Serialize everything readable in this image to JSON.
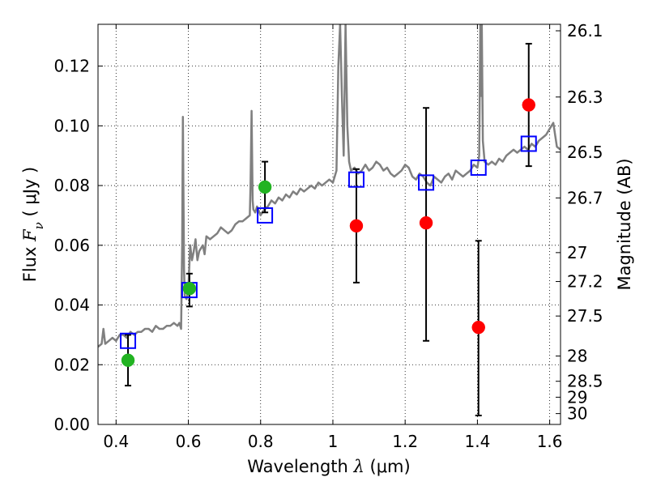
{
  "chart_data": {
    "type": "scatter",
    "title": "",
    "xlabel": "Wavelength  λ (μm)",
    "ylabel": "Flux  Fν  ( μJy )",
    "ylabel_parts": {
      "prefix": "Flux  ",
      "symbol": "F",
      "subscript": "ν",
      "suffix": "  ( μJy )"
    },
    "xlabel_parts": {
      "prefix": "Wavelength  ",
      "symbol": "λ",
      "suffix": " (μm)"
    },
    "y2label": "Magnitude (AB)",
    "xlim": [
      0.35,
      1.63
    ],
    "ylim": [
      0.0,
      0.134
    ],
    "grid": true,
    "legend": "none",
    "x_ticks": [
      {
        "value": 0.4,
        "label": "0.4"
      },
      {
        "value": 0.6,
        "label": "0.6"
      },
      {
        "value": 0.8,
        "label": "0.8"
      },
      {
        "value": 1.0,
        "label": "1"
      },
      {
        "value": 1.2,
        "label": "1.2"
      },
      {
        "value": 1.4,
        "label": "1.4"
      },
      {
        "value": 1.6,
        "label": "1.6"
      }
    ],
    "y_ticks": [
      {
        "value": 0.0,
        "label": "0.00"
      },
      {
        "value": 0.02,
        "label": "0.02"
      },
      {
        "value": 0.04,
        "label": "0.04"
      },
      {
        "value": 0.06,
        "label": "0.06"
      },
      {
        "value": 0.08,
        "label": "0.08"
      },
      {
        "value": 0.1,
        "label": "0.10"
      },
      {
        "value": 0.12,
        "label": "0.12"
      }
    ],
    "y2_ticks": [
      {
        "label": "26.1",
        "value": 26.1
      },
      {
        "label": "26.3",
        "value": 26.3
      },
      {
        "label": "26.5",
        "value": 26.5
      },
      {
        "label": "26.7",
        "value": 26.7
      },
      {
        "label": "27",
        "value": 27.0
      },
      {
        "label": "27.2",
        "value": 27.2
      },
      {
        "label": "27.5",
        "value": 27.5
      },
      {
        "label": "28",
        "value": 28.0
      },
      {
        "label": "28.5",
        "value": 28.5
      },
      {
        "label": "29",
        "value": 29.0
      },
      {
        "label": "30",
        "value": 30.0
      }
    ],
    "series": [
      {
        "kind": "line",
        "color": "#808080",
        "x": [
          0.35,
          0.36,
          0.365,
          0.37,
          0.38,
          0.39,
          0.4,
          0.41,
          0.42,
          0.43,
          0.44,
          0.45,
          0.46,
          0.47,
          0.48,
          0.49,
          0.5,
          0.51,
          0.52,
          0.53,
          0.54,
          0.55,
          0.56,
          0.57,
          0.575,
          0.58,
          0.583,
          0.585,
          0.588,
          0.59,
          0.595,
          0.6,
          0.605,
          0.61,
          0.615,
          0.62,
          0.625,
          0.63,
          0.64,
          0.645,
          0.65,
          0.66,
          0.67,
          0.68,
          0.69,
          0.7,
          0.71,
          0.72,
          0.73,
          0.74,
          0.75,
          0.76,
          0.77,
          0.772,
          0.775,
          0.778,
          0.78,
          0.785,
          0.79,
          0.8,
          0.81,
          0.82,
          0.83,
          0.84,
          0.85,
          0.86,
          0.87,
          0.88,
          0.89,
          0.9,
          0.91,
          0.92,
          0.93,
          0.94,
          0.95,
          0.96,
          0.97,
          0.98,
          0.99,
          1.0,
          1.005,
          1.01,
          1.015,
          1.02,
          1.025,
          1.03,
          1.035,
          1.04,
          1.045,
          1.05,
          1.06,
          1.07,
          1.08,
          1.09,
          1.1,
          1.11,
          1.12,
          1.13,
          1.14,
          1.15,
          1.16,
          1.17,
          1.18,
          1.19,
          1.2,
          1.21,
          1.22,
          1.23,
          1.24,
          1.25,
          1.26,
          1.27,
          1.28,
          1.29,
          1.3,
          1.31,
          1.32,
          1.33,
          1.34,
          1.35,
          1.36,
          1.37,
          1.38,
          1.39,
          1.4,
          1.405,
          1.408,
          1.41,
          1.412,
          1.415,
          1.42,
          1.43,
          1.44,
          1.45,
          1.46,
          1.47,
          1.48,
          1.49,
          1.5,
          1.51,
          1.52,
          1.53,
          1.54,
          1.55,
          1.56,
          1.57,
          1.58,
          1.59,
          1.6,
          1.61,
          1.62,
          1.63
        ],
        "y": [
          0.026,
          0.027,
          0.032,
          0.027,
          0.028,
          0.029,
          0.028,
          0.03,
          0.03,
          0.029,
          0.031,
          0.03,
          0.031,
          0.031,
          0.032,
          0.032,
          0.031,
          0.033,
          0.032,
          0.032,
          0.033,
          0.033,
          0.034,
          0.033,
          0.034,
          0.032,
          0.06,
          0.103,
          0.052,
          0.043,
          0.042,
          0.045,
          0.06,
          0.055,
          0.058,
          0.062,
          0.055,
          0.058,
          0.06,
          0.057,
          0.063,
          0.062,
          0.063,
          0.064,
          0.066,
          0.065,
          0.064,
          0.065,
          0.067,
          0.068,
          0.068,
          0.069,
          0.07,
          0.08,
          0.105,
          0.075,
          0.072,
          0.071,
          0.073,
          0.07,
          0.072,
          0.073,
          0.075,
          0.074,
          0.076,
          0.075,
          0.077,
          0.076,
          0.078,
          0.077,
          0.079,
          0.078,
          0.079,
          0.08,
          0.079,
          0.081,
          0.08,
          0.081,
          0.082,
          0.081,
          0.083,
          0.085,
          0.12,
          0.134,
          0.11,
          0.09,
          0.134,
          0.1,
          0.088,
          0.085,
          0.086,
          0.084,
          0.085,
          0.087,
          0.085,
          0.086,
          0.088,
          0.087,
          0.085,
          0.086,
          0.084,
          0.083,
          0.084,
          0.085,
          0.087,
          0.086,
          0.083,
          0.082,
          0.084,
          0.083,
          0.081,
          0.08,
          0.083,
          0.082,
          0.081,
          0.083,
          0.084,
          0.082,
          0.085,
          0.084,
          0.083,
          0.084,
          0.085,
          0.087,
          0.086,
          0.09,
          0.134,
          0.11,
          0.134,
          0.095,
          0.088,
          0.087,
          0.088,
          0.087,
          0.089,
          0.088,
          0.09,
          0.091,
          0.092,
          0.091,
          0.092,
          0.093,
          0.092,
          0.094,
          0.093,
          0.095,
          0.096,
          0.097,
          0.099,
          0.101,
          0.093,
          0.092
        ]
      },
      {
        "kind": "open-square",
        "color": "#0000ff",
        "x": [
          0.433,
          0.603,
          0.812,
          1.065,
          1.258,
          1.403,
          1.542
        ],
        "y": [
          0.028,
          0.045,
          0.07,
          0.082,
          0.081,
          0.086,
          0.094
        ]
      },
      {
        "kind": "filled-circle",
        "color": "#22b322",
        "x": [
          0.433,
          0.603,
          0.812
        ],
        "y": [
          0.0215,
          0.0455,
          0.0795
        ]
      },
      {
        "kind": "filled-circle",
        "color": "#ff0000",
        "x": [
          1.065,
          1.258,
          1.403,
          1.542
        ],
        "y": [
          0.0665,
          0.0675,
          0.0325,
          0.107
        ]
      }
    ],
    "errorbars": [
      {
        "x": 0.433,
        "lo": 0.013,
        "hi": 0.03
      },
      {
        "x": 0.603,
        "lo": 0.0395,
        "hi": 0.0505
      },
      {
        "x": 0.812,
        "lo": 0.071,
        "hi": 0.088
      },
      {
        "x": 1.065,
        "lo": 0.0475,
        "hi": 0.0855
      },
      {
        "x": 1.258,
        "lo": 0.028,
        "hi": 0.106
      },
      {
        "x": 1.403,
        "lo": 0.003,
        "hi": 0.0615
      },
      {
        "x": 1.542,
        "lo": 0.0865,
        "hi": 0.1275
      }
    ]
  }
}
